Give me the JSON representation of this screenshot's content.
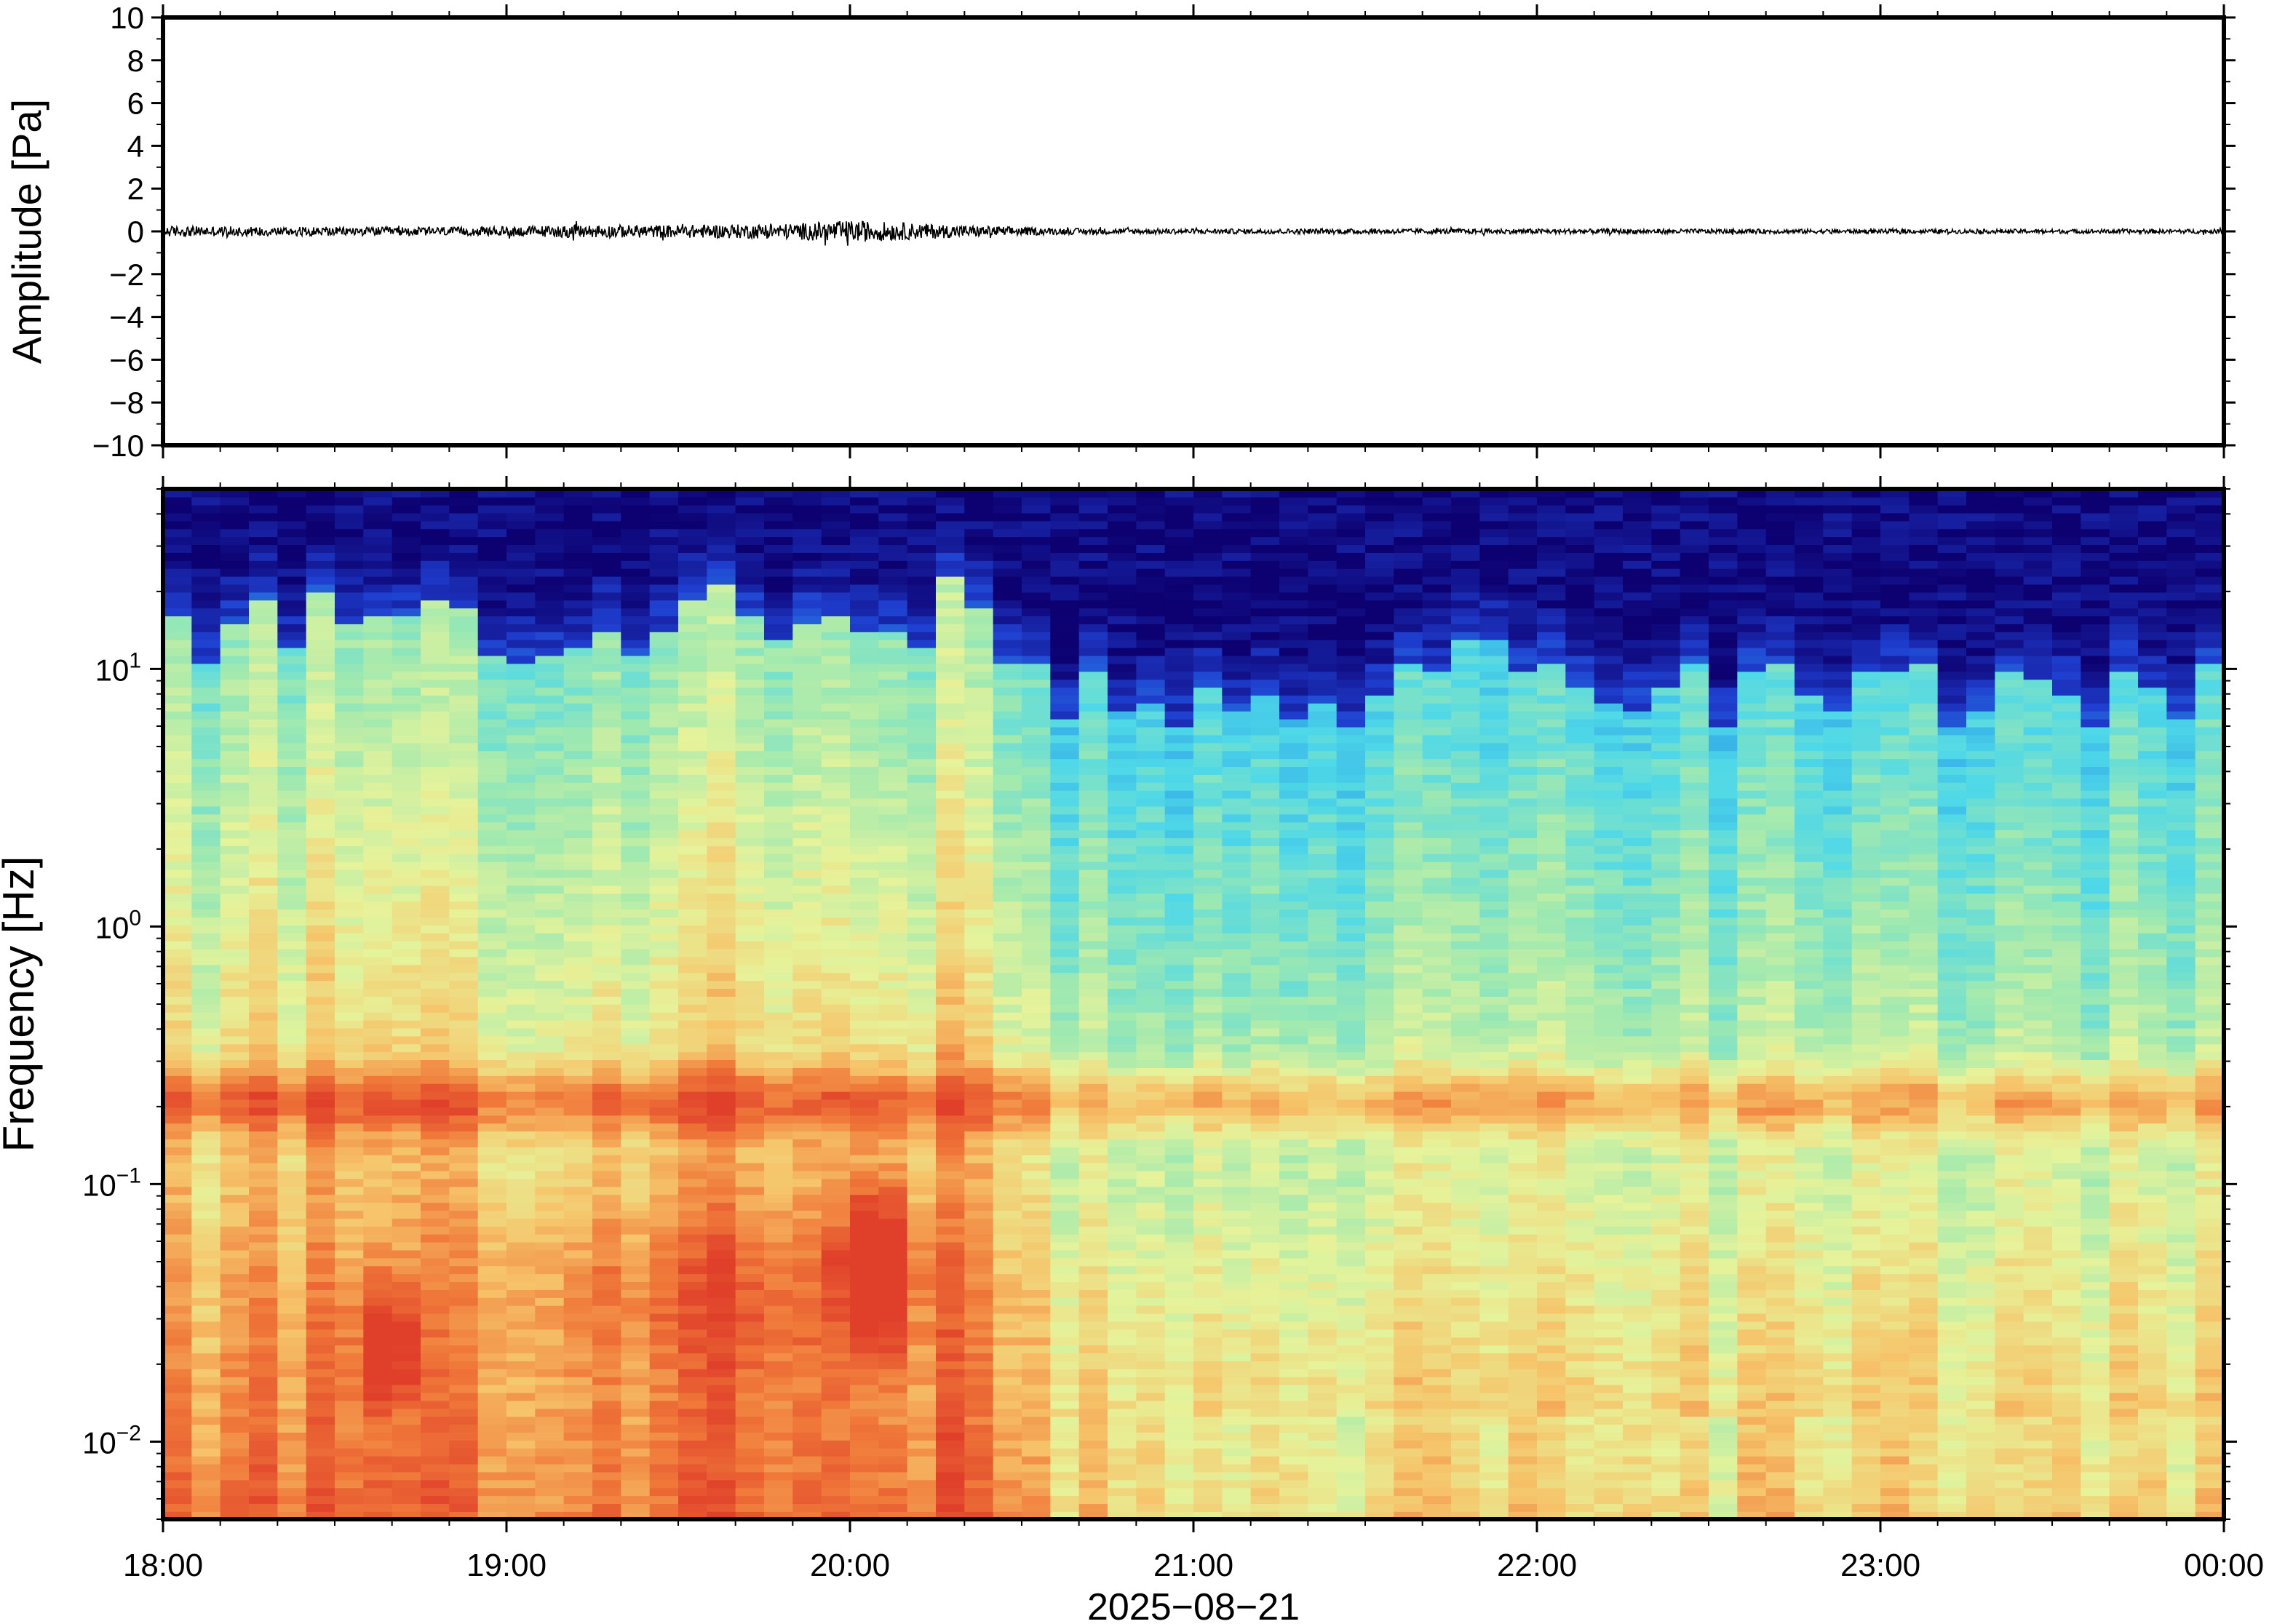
{
  "chart_data": [
    {
      "type": "line",
      "xlabel": "",
      "ylabel": "Amplitude [Pa]",
      "ylim": [
        -10,
        10
      ],
      "yticks": [
        -10,
        -8,
        -6,
        -4,
        -2,
        0,
        2,
        4,
        6,
        8,
        10
      ],
      "ytick_labels": [
        "−10",
        "−8",
        "−6",
        "−4",
        "−2",
        "0",
        "2",
        "4",
        "6",
        "8",
        "10"
      ],
      "xlim": [
        "18:00",
        "00:00"
      ],
      "grid": false,
      "trace_envelope": {
        "x_hours": [
          18.0,
          18.5,
          18.9,
          19.2,
          19.5,
          19.8,
          20.0,
          20.1,
          20.3,
          20.6,
          21.0,
          22.0,
          23.0,
          24.0
        ],
        "peak_pa": [
          0.25,
          0.2,
          0.2,
          0.3,
          0.3,
          0.35,
          0.5,
          0.45,
          0.3,
          0.15,
          0.12,
          0.12,
          0.1,
          0.1
        ]
      }
    },
    {
      "type": "heatmap",
      "ylabel": "Frequency [Hz]",
      "xlabel": "2025−08−21",
      "yscale": "log",
      "ylim": [
        0.005,
        50
      ],
      "yticks": [
        0.01,
        0.1,
        1,
        10
      ],
      "ytick_labels": [
        {
          "base": "10",
          "exp": "−2"
        },
        {
          "base": "10",
          "exp": "−1"
        },
        {
          "base": "10",
          "exp": "0"
        },
        {
          "base": "10",
          "exp": "1"
        }
      ],
      "xticks": [
        "18:00",
        "19:00",
        "20:00",
        "21:00",
        "22:00",
        "23:00",
        "00:00"
      ],
      "colormap": "jet",
      "colors": [
        "#0d0070",
        "#1f3fd0",
        "#2a9ae8",
        "#4ed8e8",
        "#9fe9b0",
        "#e6f39a",
        "#f6c46a",
        "#f07a3a",
        "#e0402a"
      ],
      "features": {
        "quiet_upper_cutoff_hz_daytime": 15,
        "quiet_upper_cutoff_hz_night": 8,
        "microbarom_band_hz": [
          0.18,
          0.25
        ],
        "event_time": "20:05",
        "event_band_hz": [
          0.03,
          0.12
        ],
        "event_secondary_time": "18:38",
        "event_secondary_band_hz": [
          0.015,
          0.04
        ]
      }
    }
  ],
  "bottom_label": "2025−08−21"
}
